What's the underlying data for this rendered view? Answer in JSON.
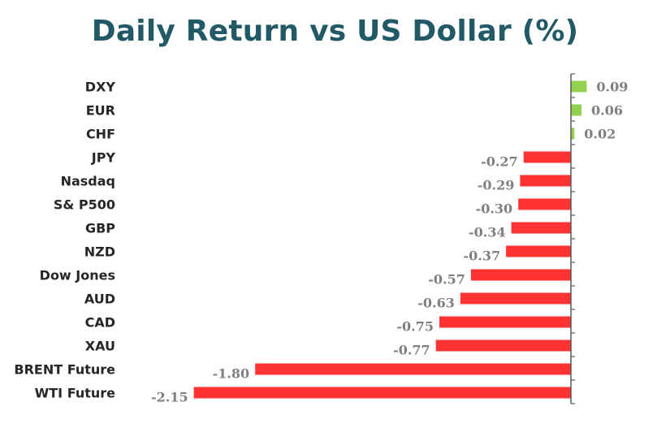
{
  "chart_data": {
    "type": "bar",
    "orientation": "horizontal",
    "title": "Daily Return vs US Dollar (%)",
    "categories": [
      "DXY",
      "EUR",
      "CHF",
      "JPY",
      "Nasdaq",
      "S& P500",
      "GBP",
      "NZD",
      "Dow Jones",
      "AUD",
      "CAD",
      "XAU",
      "BRENT Future",
      "WTI Future"
    ],
    "values": [
      0.09,
      0.06,
      0.02,
      -0.27,
      -0.29,
      -0.3,
      -0.34,
      -0.37,
      -0.57,
      -0.63,
      -0.75,
      -0.77,
      -1.8,
      -2.15
    ],
    "value_labels": [
      "0.09",
      "0.06",
      "0.02",
      "-0.27",
      "-0.29",
      "-0.30",
      "-0.34",
      "-0.37",
      "-0.57",
      "-0.63",
      "-0.75",
      "-0.77",
      "-1.80",
      "-2.15"
    ],
    "colors": {
      "positive": "#92d050",
      "negative": "#ff3333",
      "title": "#215967",
      "axis": "#595959",
      "value_label": "#7f7f7f"
    },
    "xlim": [
      -2.15,
      0.09
    ],
    "grid": false,
    "legend": "none"
  }
}
